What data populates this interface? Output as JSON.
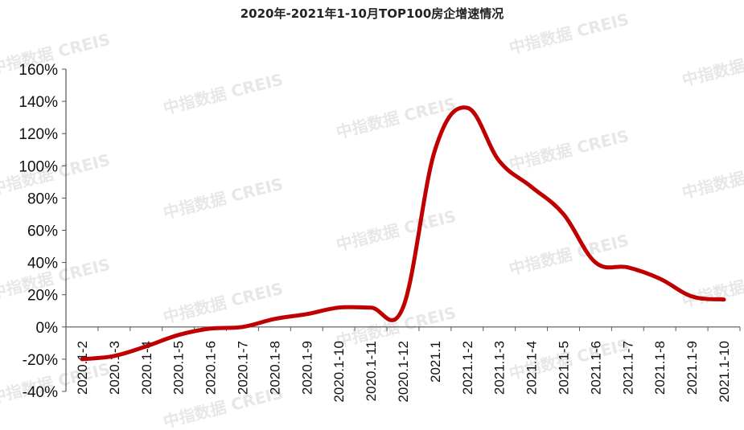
{
  "chart_data": {
    "type": "line",
    "title": "2020年-2021年1-10月TOP100房企增速情况",
    "xlabel": "",
    "ylabel": "",
    "ylim": [
      -40,
      160
    ],
    "y_ticks": [
      "-40%",
      "-20%",
      "0%",
      "20%",
      "40%",
      "60%",
      "80%",
      "100%",
      "120%",
      "140%",
      "160%"
    ],
    "y_tick_values": [
      -40,
      -20,
      0,
      20,
      40,
      60,
      80,
      100,
      120,
      140,
      160
    ],
    "categories": [
      "2020.1-2",
      "2020.1-3",
      "2020.1-4",
      "2020.1-5",
      "2020.1-6",
      "2020.1-7",
      "2020.1-8",
      "2020.1-9",
      "2020.1-10",
      "2020.1-11",
      "2020.1-12",
      "2021.1",
      "2021.1-2",
      "2021.1-3",
      "2021.1-4",
      "2021.1-5",
      "2021.1-6",
      "2021.1-7",
      "2021.1-8",
      "2021.1-9",
      "2021.1-10"
    ],
    "series": [
      {
        "values": [
          -20,
          -18,
          -12,
          -5,
          -1,
          0,
          5,
          8,
          12,
          12,
          12,
          110,
          136,
          103,
          87,
          70,
          40,
          37,
          30,
          19,
          17
        ],
        "color": "#c00000"
      }
    ],
    "grid": false,
    "legend": "none"
  },
  "watermark": "中指数据 CREIS"
}
